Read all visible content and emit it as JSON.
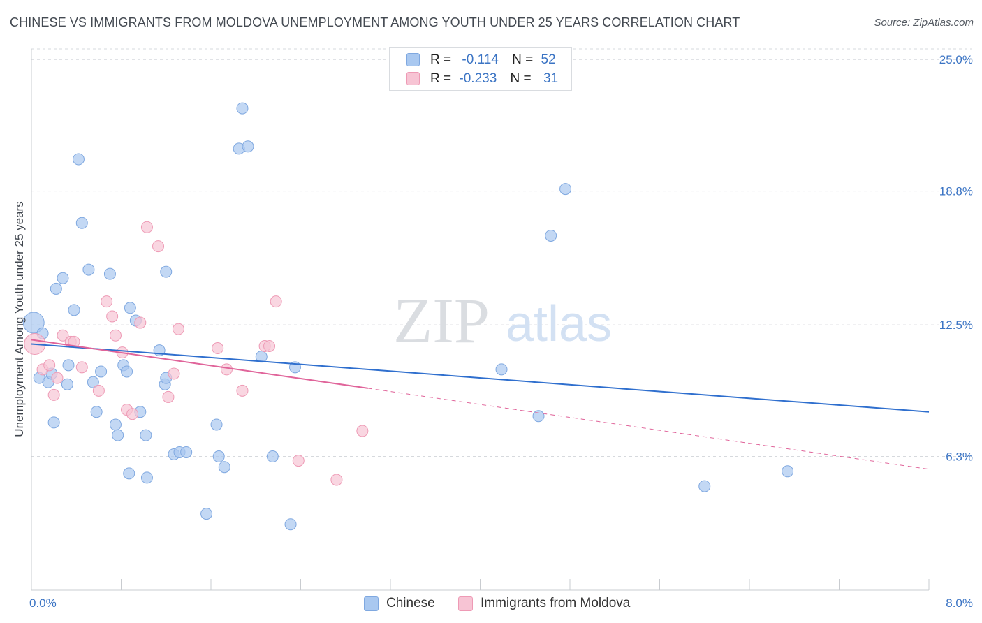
{
  "title": "CHINESE VS IMMIGRANTS FROM MOLDOVA UNEMPLOYMENT AMONG YOUTH UNDER 25 YEARS CORRELATION CHART",
  "source": "Source: ZipAtlas.com",
  "watermark": {
    "zip": "ZIP",
    "atlas": "atlas"
  },
  "legend_stats": [
    {
      "r_label": "R =",
      "r_value": "-0.114",
      "n_label": "N =",
      "n_value": "52",
      "color": "#a9c8f0",
      "border": "#7fa8e0"
    },
    {
      "r_label": "R =",
      "r_value": "-0.233",
      "n_label": "N =",
      "n_value": "31",
      "color": "#f7c4d4",
      "border": "#ee9ab5"
    }
  ],
  "chart_data": {
    "type": "scatter",
    "title": "CHINESE VS IMMIGRANTS FROM MOLDOVA UNEMPLOYMENT AMONG YOUTH UNDER 25 YEARS CORRELATION CHART",
    "xlabel": "",
    "ylabel": "Unemployment Among Youth under 25 years",
    "xlim": [
      0,
      8
    ],
    "ylim": [
      0,
      25.5
    ],
    "x_tick_labels": [
      "0.0%",
      "8.0%"
    ],
    "y_ticks": [
      6.3,
      12.5,
      18.8,
      25.0
    ],
    "y_tick_labels": [
      "6.3%",
      "12.5%",
      "18.8%",
      "25.0%"
    ],
    "grid": true,
    "legend_position": "bottom",
    "series": [
      {
        "name": "Chinese",
        "color": "#a9c8f0",
        "stroke": "#7fa8e0",
        "trend_color": "#2f6fce",
        "trend": {
          "x0": 0.0,
          "y0": 11.6,
          "x1": 8.0,
          "y1": 8.4,
          "dashed_from": null
        },
        "x": [
          0.02,
          0.07,
          0.1,
          0.15,
          0.18,
          0.2,
          0.22,
          0.28,
          0.33,
          0.38,
          0.42,
          0.45,
          0.51,
          0.55,
          0.62,
          0.7,
          0.75,
          0.77,
          0.82,
          0.85,
          0.88,
          0.93,
          0.97,
          1.02,
          1.14,
          1.19,
          1.2,
          1.27,
          1.32,
          1.38,
          1.56,
          1.65,
          1.67,
          1.72,
          1.85,
          1.88,
          1.93,
          2.05,
          2.15,
          2.31,
          2.35,
          1.03,
          0.32,
          0.58,
          0.87,
          1.2,
          4.19,
          4.52,
          4.63,
          4.76,
          6.0,
          6.74
        ],
        "y": [
          12.6,
          10.0,
          12.1,
          9.8,
          10.2,
          7.9,
          14.2,
          14.7,
          10.6,
          13.2,
          20.3,
          17.3,
          15.1,
          9.8,
          10.3,
          14.9,
          7.8,
          7.3,
          10.6,
          10.3,
          13.3,
          12.7,
          8.4,
          7.3,
          11.3,
          9.7,
          10.0,
          6.4,
          6.5,
          6.5,
          3.6,
          7.8,
          6.3,
          5.8,
          20.8,
          22.7,
          20.9,
          11.0,
          6.3,
          3.1,
          10.5,
          5.3,
          9.7,
          8.4,
          5.5,
          15.0,
          10.4,
          8.2,
          16.7,
          18.9,
          4.9,
          5.6
        ]
      },
      {
        "name": "Immigrants from Moldova",
        "color": "#f7c4d4",
        "stroke": "#ee9ab5",
        "trend_color": "#e0649a",
        "trend": {
          "x0": 0.0,
          "y0": 11.8,
          "x1": 8.0,
          "y1": 5.7,
          "dashed_from": 3.0
        },
        "x": [
          0.03,
          0.1,
          0.16,
          0.2,
          0.23,
          0.28,
          0.35,
          0.38,
          0.45,
          0.6,
          0.67,
          0.72,
          0.75,
          0.81,
          0.85,
          0.9,
          0.97,
          1.03,
          1.13,
          1.22,
          1.27,
          1.31,
          1.66,
          1.74,
          1.88,
          2.08,
          2.12,
          2.18,
          2.72,
          2.95,
          2.38
        ],
        "y": [
          11.6,
          10.4,
          10.6,
          9.2,
          10.0,
          12.0,
          11.7,
          11.7,
          10.5,
          9.4,
          13.6,
          12.9,
          12.0,
          11.2,
          8.5,
          8.3,
          12.6,
          17.1,
          16.2,
          9.1,
          10.2,
          12.3,
          11.4,
          10.4,
          9.4,
          11.5,
          11.5,
          13.6,
          5.2,
          7.5,
          6.1
        ]
      }
    ]
  },
  "bottom_legend": [
    {
      "label": "Chinese",
      "color": "#a9c8f0",
      "border": "#7fa8e0"
    },
    {
      "label": "Immigrants from Moldova",
      "color": "#f7c4d4",
      "border": "#ee9ab5"
    }
  ]
}
